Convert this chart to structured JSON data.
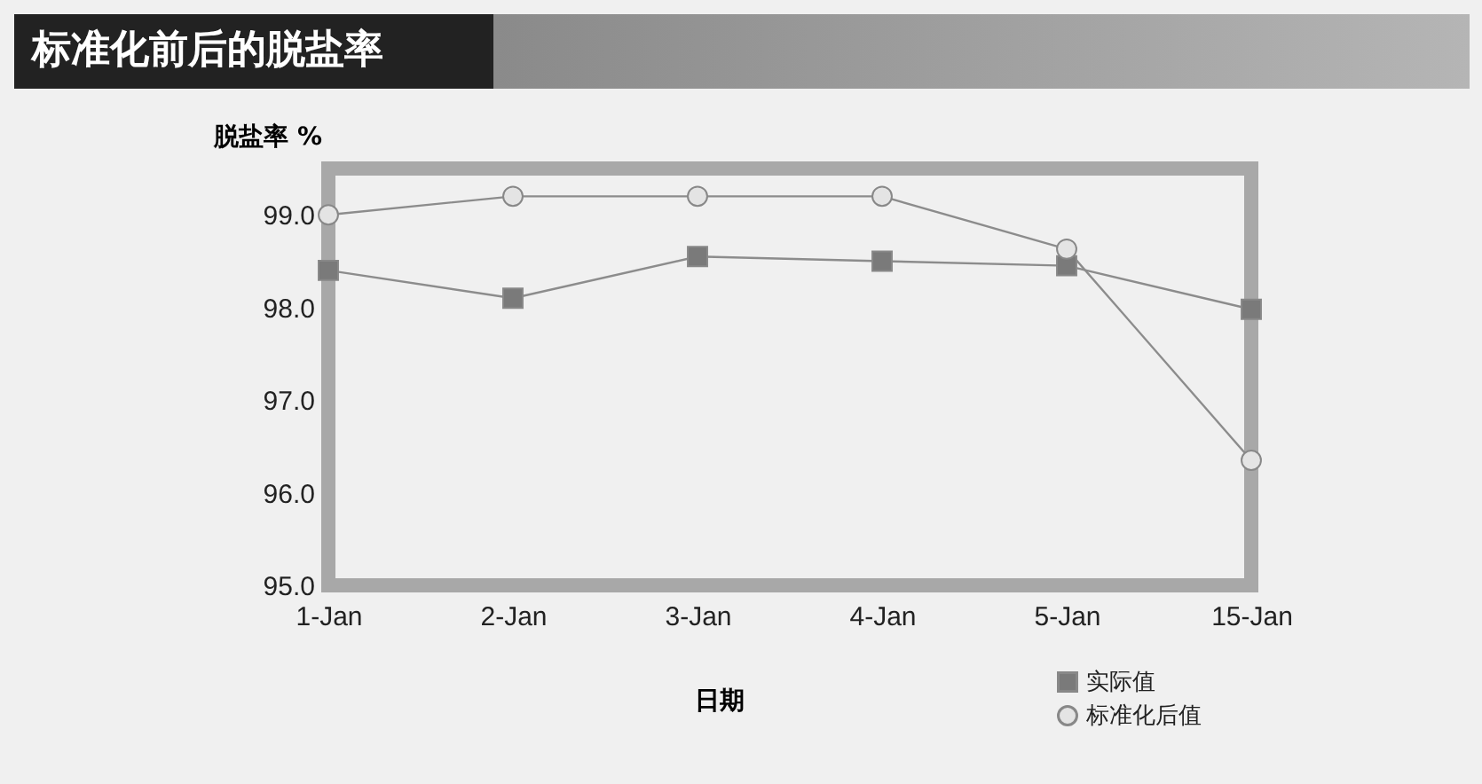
{
  "chart_data": {
    "type": "line",
    "title": "标准化前后的脱盐率",
    "xlabel": "日期",
    "ylabel": "脱盐率 %",
    "categories": [
      "1-Jan",
      "2-Jan",
      "3-Jan",
      "4-Jan",
      "5-Jan",
      "15-Jan"
    ],
    "series": [
      {
        "name": "实际值",
        "color": "#7a7a7a",
        "marker": "square",
        "values": [
          98.4,
          98.1,
          98.55,
          98.5,
          98.45,
          97.98
        ]
      },
      {
        "name": "标准化后值",
        "color": "#e4e4e4",
        "marker": "circle",
        "values": [
          99.0,
          99.2,
          99.2,
          99.2,
          98.63,
          96.35
        ]
      }
    ],
    "ylim": [
      95,
      99.5
    ],
    "yticks": [
      {
        "value": 95,
        "label": "95.0"
      },
      {
        "value": 96,
        "label": "96.0"
      },
      {
        "value": 97,
        "label": "97.0"
      },
      {
        "value": 98,
        "label": "98.0"
      },
      {
        "value": 99,
        "label": "99.0"
      }
    ],
    "grid": false,
    "legend": "bottom right"
  }
}
